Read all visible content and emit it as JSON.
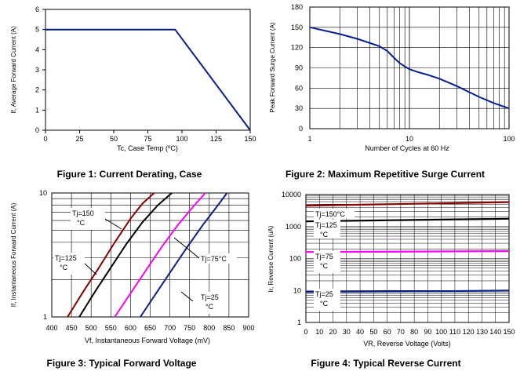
{
  "chart_data": [
    {
      "type": "line",
      "caption": "Figure 1: Current Derating, Case",
      "xlabel": "Tc, Case Temp (ºC)",
      "ylabel": "If, Average Forward Current (A)",
      "xlim": [
        0,
        150
      ],
      "ylim": [
        0,
        6
      ],
      "xticks": [
        "0",
        "25",
        "50",
        "75",
        "100",
        "125",
        "150"
      ],
      "yticks": [
        "0",
        "1",
        "2",
        "3",
        "4",
        "5",
        "6"
      ],
      "grid": false,
      "series": [
        {
          "color": "#0a1f8f",
          "x": [
            0,
            95,
            150
          ],
          "y": [
            5,
            5,
            0
          ]
        }
      ]
    },
    {
      "type": "line",
      "caption": "Figure 2: Maximum Repetitive Surge Current",
      "xlabel": "Number of Cycles at 60 Hz",
      "ylabel": "Peak Forward Surge Current (A)",
      "xscale": "log",
      "xlim": [
        1,
        100
      ],
      "ylim": [
        0,
        180
      ],
      "xticks": [
        "1",
        "10",
        "100"
      ],
      "yticks": [
        "0",
        "30",
        "60",
        "90",
        "120",
        "150",
        "180"
      ],
      "grid": true,
      "series": [
        {
          "color": "#0a1f8f",
          "x": [
            1,
            2,
            3,
            5,
            6,
            7,
            8,
            9,
            10,
            12,
            15,
            20,
            30,
            50,
            70,
            100
          ],
          "y": [
            150,
            140,
            133,
            122,
            115,
            105,
            97,
            92,
            88,
            84,
            80,
            74,
            63,
            47,
            38,
            30
          ]
        }
      ]
    },
    {
      "type": "line",
      "caption": "Figure 3: Typical Forward Voltage",
      "xlabel": "Vf, Instantaneous Forward Voltage (mV)",
      "ylabel": "If, Instantaneous Forward Current (A)",
      "yscale": "log",
      "xlim": [
        400,
        900
      ],
      "ylim": [
        1,
        10
      ],
      "xticks": [
        "400",
        "450",
        "500",
        "550",
        "600",
        "650",
        "700",
        "750",
        "800",
        "850",
        "900"
      ],
      "yticks": [
        "1",
        "10"
      ],
      "grid": true,
      "series": [
        {
          "name": "Tj=150°C",
          "color": "#8b0000",
          "x": [
            440,
            480,
            520,
            560,
            600,
            630,
            660
          ],
          "y": [
            1,
            1.6,
            2.5,
            4,
            6.2,
            8.2,
            10
          ]
        },
        {
          "name": "Tj=125°C",
          "color": "#000000",
          "x": [
            470,
            510,
            550,
            590,
            630,
            670,
            705
          ],
          "y": [
            1,
            1.6,
            2.5,
            3.9,
            5.8,
            8,
            10
          ]
        },
        {
          "name": "Tj=75°C",
          "color": "#ff00ff",
          "x": [
            560,
            600,
            640,
            680,
            720,
            760,
            790
          ],
          "y": [
            1,
            1.55,
            2.4,
            3.7,
            5.5,
            7.8,
            10
          ]
        },
        {
          "name": "Tj=25°C",
          "color": "#0a1f8f",
          "x": [
            625,
            665,
            705,
            745,
            785,
            820,
            845
          ],
          "y": [
            1,
            1.55,
            2.4,
            3.7,
            5.6,
            7.8,
            10
          ]
        }
      ],
      "annotations": [
        {
          "text": "Tj=150",
          "text2": "°C"
        },
        {
          "text": "Tj=125",
          "text2": "°C"
        },
        {
          "text": "Tj=75°C",
          "text2": ""
        },
        {
          "text": "Tj=25",
          "text2": "°C"
        }
      ]
    },
    {
      "type": "line",
      "caption": "Figure 4: Typical Reverse Current",
      "xlabel": "VR, Reverse Voltage (Volts)",
      "ylabel": "Ir, Reverse Current (uA)",
      "yscale": "log",
      "xlim": [
        0,
        150
      ],
      "ylim": [
        1,
        10000
      ],
      "xticks": [
        "0",
        "10",
        "20",
        "30",
        "40",
        "50",
        "60",
        "70",
        "80",
        "90",
        "100",
        "110",
        "120",
        "130",
        "140",
        "150"
      ],
      "yticks": [
        "1",
        "10",
        "100",
        "1000",
        "10000"
      ],
      "grid": true,
      "series": [
        {
          "name": "Tj=150°C",
          "color": "#8b0000",
          "x": [
            0,
            50,
            100,
            150
          ],
          "y": [
            4500,
            4900,
            5300,
            5800
          ]
        },
        {
          "name": "Tj=125",
          "color": "#000000",
          "x": [
            0,
            50,
            100,
            150
          ],
          "y": [
            1450,
            1550,
            1650,
            1750
          ]
        },
        {
          "name": "Tj=75",
          "color": "#ff00ff",
          "x": [
            0,
            50,
            100,
            150
          ],
          "y": [
            160,
            163,
            166,
            170
          ]
        },
        {
          "name": "Tj=25",
          "color": "#0a1f8f",
          "x": [
            0,
            50,
            100,
            150
          ],
          "y": [
            9,
            9.2,
            9.5,
            10
          ]
        }
      ],
      "annotations": [
        {
          "text": "Tj=150°C",
          "text2": ""
        },
        {
          "text": "Tj=125",
          "text2": "°C"
        },
        {
          "text": "Tj=75",
          "text2": "°C"
        },
        {
          "text": "Tj=25",
          "text2": "°C"
        }
      ]
    }
  ]
}
